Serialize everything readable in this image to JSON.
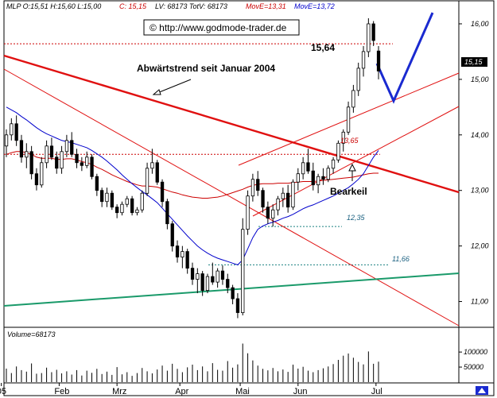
{
  "header": {
    "symbol_info": "MLP O:15,51 H:15,60 L:15,00",
    "close_info": "C: 15,15",
    "volume_info": "LV: 68173 TotV: 68173",
    "ma1_info": "MovE=13,31",
    "ma2_info": "MovE=13,72",
    "url": "© http://www.godmode-trader.de"
  },
  "colors": {
    "up_candle": "#ffffff",
    "down_candle": "#000000",
    "ma1": "#cc0000",
    "ma2": "#0000cc",
    "trend_main": "#e01010",
    "channel": "#e01010",
    "support": "#1a9a6a",
    "projection": "#1a2ad0",
    "level_dotted_red": "#cc0000",
    "level_dotted_teal": "#1a8080"
  },
  "chart_data": {
    "type": "candlestick",
    "title": "",
    "ylim": [
      10.55,
      16.2
    ],
    "y_ticks": [
      "16,00",
      "15,00",
      "14,00",
      "13,00",
      "12,00",
      "11,00"
    ],
    "x_ticks": [
      "05",
      "Feb",
      "Mrz",
      "Apr",
      "Mai",
      "Jun",
      "Jul"
    ],
    "last_price_label": "15,15",
    "volume_label": "Volume=68173",
    "volume_ticks": [
      "100000",
      "50000"
    ],
    "volume_max": 140000,
    "annotations": {
      "downtrend_label": "Abwärtstrend seit Januar 2004",
      "peak_label": "15,64",
      "bearkeil_label": "Bearkeil",
      "level_1365": "13,65",
      "level_1235": "12,35",
      "level_1166": "11,66"
    },
    "levels": [
      {
        "label": "15,64",
        "value": 15.64
      },
      {
        "label": "13,65",
        "value": 13.65
      },
      {
        "label": "12,35",
        "value": 12.35
      },
      {
        "label": "11,66",
        "value": 11.66
      }
    ],
    "candles": [
      [
        13.8,
        14.1,
        13.6,
        14.0
      ],
      [
        14.0,
        14.3,
        13.9,
        14.2
      ],
      [
        14.2,
        14.35,
        13.8,
        13.9
      ],
      [
        13.9,
        14.0,
        13.5,
        13.6
      ],
      [
        13.6,
        13.85,
        13.4,
        13.7
      ],
      [
        13.7,
        13.8,
        13.2,
        13.3
      ],
      [
        13.3,
        13.4,
        13.0,
        13.1
      ],
      [
        13.1,
        13.6,
        13.05,
        13.5
      ],
      [
        13.5,
        13.9,
        13.4,
        13.8
      ],
      [
        13.8,
        13.95,
        13.55,
        13.6
      ],
      [
        13.6,
        13.7,
        13.3,
        13.4
      ],
      [
        13.4,
        13.8,
        13.3,
        13.7
      ],
      [
        13.7,
        14.0,
        13.6,
        13.9
      ],
      [
        13.9,
        14.05,
        13.6,
        13.65
      ],
      [
        13.65,
        13.75,
        13.4,
        13.5
      ],
      [
        13.5,
        13.6,
        13.35,
        13.45
      ],
      [
        13.45,
        13.7,
        13.4,
        13.6
      ],
      [
        13.6,
        13.65,
        13.2,
        13.25
      ],
      [
        13.25,
        13.3,
        12.9,
        13.0
      ],
      [
        13.0,
        13.05,
        12.7,
        12.8
      ],
      [
        12.8,
        13.05,
        12.7,
        12.95
      ],
      [
        12.95,
        13.0,
        12.65,
        12.7
      ],
      [
        12.7,
        12.75,
        12.5,
        12.6
      ],
      [
        12.6,
        12.8,
        12.55,
        12.75
      ],
      [
        12.75,
        12.9,
        12.7,
        12.85
      ],
      [
        12.85,
        12.9,
        12.55,
        12.6
      ],
      [
        12.6,
        12.7,
        12.55,
        12.65
      ],
      [
        12.65,
        13.0,
        12.6,
        12.95
      ],
      [
        12.95,
        13.5,
        12.9,
        13.4
      ],
      [
        13.4,
        13.75,
        13.3,
        13.5
      ],
      [
        13.5,
        13.55,
        13.1,
        13.15
      ],
      [
        13.15,
        13.2,
        12.7,
        12.8
      ],
      [
        12.8,
        12.85,
        12.3,
        12.4
      ],
      [
        12.4,
        12.45,
        11.9,
        12.0
      ],
      [
        12.0,
        12.1,
        11.7,
        11.8
      ],
      [
        11.8,
        12.0,
        11.6,
        11.9
      ],
      [
        11.9,
        11.95,
        11.5,
        11.6
      ],
      [
        11.6,
        11.7,
        11.3,
        11.4
      ],
      [
        11.4,
        11.6,
        11.15,
        11.5
      ],
      [
        11.5,
        11.55,
        11.1,
        11.2
      ],
      [
        11.2,
        11.5,
        11.15,
        11.45
      ],
      [
        11.45,
        11.7,
        11.3,
        11.35
      ],
      [
        11.35,
        11.6,
        11.25,
        11.55
      ],
      [
        11.55,
        11.65,
        11.3,
        11.4
      ],
      [
        11.4,
        11.5,
        11.15,
        11.25
      ],
      [
        11.25,
        11.3,
        10.95,
        11.05
      ],
      [
        11.05,
        11.15,
        10.7,
        10.8
      ],
      [
        10.8,
        12.5,
        10.75,
        12.3
      ],
      [
        12.3,
        13.0,
        12.2,
        12.9
      ],
      [
        12.9,
        13.3,
        12.8,
        13.2
      ],
      [
        13.2,
        13.35,
        12.9,
        13.0
      ],
      [
        13.0,
        13.05,
        12.6,
        12.7
      ],
      [
        12.7,
        12.8,
        12.4,
        12.5
      ],
      [
        12.5,
        12.75,
        12.35,
        12.65
      ],
      [
        12.65,
        12.9,
        12.55,
        12.85
      ],
      [
        12.85,
        13.05,
        12.7,
        12.95
      ],
      [
        12.95,
        13.1,
        12.6,
        12.7
      ],
      [
        12.7,
        13.2,
        12.65,
        13.15
      ],
      [
        13.15,
        13.4,
        13.0,
        13.3
      ],
      [
        13.3,
        13.6,
        13.2,
        13.5
      ],
      [
        13.5,
        13.75,
        13.3,
        13.35
      ],
      [
        13.35,
        13.5,
        13.0,
        13.1
      ],
      [
        13.1,
        13.3,
        12.95,
        13.25
      ],
      [
        13.25,
        13.4,
        13.1,
        13.2
      ],
      [
        13.2,
        13.45,
        13.15,
        13.4
      ],
      [
        13.4,
        13.6,
        13.3,
        13.55
      ],
      [
        13.55,
        13.9,
        13.5,
        13.85
      ],
      [
        13.85,
        14.1,
        13.7,
        14.05
      ],
      [
        14.05,
        14.6,
        14.0,
        14.5
      ],
      [
        14.5,
        14.9,
        14.4,
        14.8
      ],
      [
        14.8,
        15.3,
        14.7,
        15.2
      ],
      [
        15.2,
        15.6,
        15.05,
        15.5
      ],
      [
        15.5,
        16.1,
        15.4,
        16.0
      ],
      [
        16.0,
        16.05,
        15.6,
        15.7
      ],
      [
        15.51,
        15.6,
        15.0,
        15.15
      ]
    ],
    "volumes": [
      45000,
      30000,
      52000,
      40000,
      35000,
      62000,
      28000,
      30000,
      48000,
      33000,
      41000,
      29000,
      36000,
      25000,
      40000,
      22000,
      38000,
      31000,
      44000,
      27000,
      35000,
      24000,
      50000,
      26000,
      33000,
      21000,
      30000,
      47000,
      36000,
      29000,
      42000,
      55000,
      38000,
      61000,
      44000,
      33000,
      49000,
      58000,
      40000,
      52000,
      36000,
      63000,
      41000,
      38000,
      70000,
      48000,
      59000,
      128000,
      96000,
      72000,
      55000,
      44000,
      39000,
      47000,
      36000,
      42000,
      34000,
      58000,
      45000,
      51000,
      38000,
      33000,
      40000,
      46000,
      52000,
      60000,
      74000,
      88000,
      95000,
      81000,
      67000,
      59000,
      102000,
      61000,
      68173
    ],
    "ma1_series": [
      [
        13.65,
        13.68,
        13.7,
        13.7,
        13.68,
        13.65,
        13.6,
        13.58,
        13.58,
        13.58,
        13.56,
        13.56,
        13.57,
        13.57,
        13.55,
        13.52,
        13.5,
        13.47,
        13.42,
        13.38,
        13.33,
        13.28,
        13.24,
        13.2,
        13.16,
        13.13,
        13.1,
        13.08,
        13.08,
        13.07,
        13.06,
        13.03,
        13.0,
        12.97,
        12.95,
        12.92,
        12.9,
        12.88,
        12.87,
        12.86,
        12.86,
        12.87,
        12.88,
        12.9,
        12.93,
        12.96,
        12.99,
        13.02,
        13.06,
        13.09,
        13.11,
        13.12,
        13.12,
        13.12,
        13.13,
        13.13,
        13.13,
        13.14,
        13.15,
        13.16,
        13.16,
        13.16,
        13.17,
        13.18,
        13.19,
        13.2,
        13.21,
        13.22,
        13.23,
        13.24,
        13.26,
        13.28,
        13.3,
        13.31,
        13.31
      ]
    ],
    "ma2_series": [
      [
        14.5,
        14.45,
        14.4,
        14.33,
        14.27,
        14.2,
        14.13,
        14.07,
        14.02,
        13.98,
        13.94,
        13.9,
        13.88,
        13.86,
        13.83,
        13.8,
        13.77,
        13.72,
        13.66,
        13.6,
        13.53,
        13.45,
        13.37,
        13.28,
        13.2,
        13.12,
        13.05,
        12.98,
        12.92,
        12.85,
        12.78,
        12.68,
        12.58,
        12.48,
        12.38,
        12.28,
        12.18,
        12.09,
        12.0,
        11.93,
        11.87,
        11.82,
        11.78,
        11.75,
        11.72,
        11.69,
        11.66,
        11.75,
        11.95,
        12.15,
        12.3,
        12.36,
        12.4,
        12.43,
        12.46,
        12.5,
        12.53,
        12.57,
        12.62,
        12.67,
        12.71,
        12.74,
        12.78,
        12.82,
        12.86,
        12.9,
        12.95,
        13.0,
        13.05,
        13.12,
        13.2,
        13.3,
        13.45,
        13.6,
        13.72
      ]
    ]
  }
}
